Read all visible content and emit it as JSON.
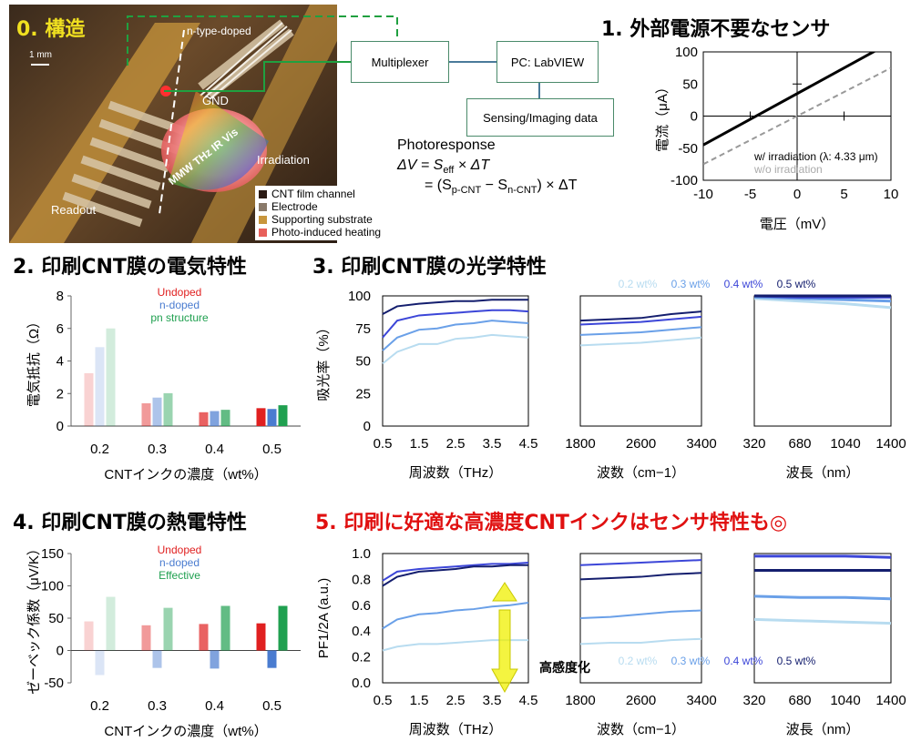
{
  "section0": {
    "title": "0. 構造",
    "scale": "1 mm",
    "labels": {
      "n": "n-type-doped",
      "gnd": "GND",
      "irr": "Irradiation",
      "readout": "Readout",
      "bands": "MMW THz IR Vis"
    },
    "legend": [
      {
        "color": "#2b1a14",
        "label": "CNT film channel"
      },
      {
        "color": "#8a7a6a",
        "label": "Electrode"
      },
      {
        "color": "#c8963c",
        "label": "Supporting substrate"
      },
      {
        "color": "#e8605a",
        "label": "Photo-induced heating"
      }
    ],
    "boxes": {
      "mux": "Multiplexer",
      "pc": "PC: LabVIEW",
      "sense": "Sensing/Imaging data"
    },
    "eq_title": "Photoresponse",
    "eq1": {
      "a": "ΔV = S",
      "sub": "eff",
      "b": " × ΔT"
    },
    "eq2": {
      "a": "= (S",
      "sub1": "p-CNT",
      "b": " − S",
      "sub2": "n-CNT",
      "c": ") × ΔT"
    }
  },
  "section1": {
    "title": "1. 外部電源不要なセンサ"
  },
  "section2": {
    "title": "2. 印刷CNT膜の電気特性"
  },
  "section3": {
    "title": "3. 印刷CNT膜の光学特性"
  },
  "section4": {
    "title": "4. 印刷CNT膜の熱電特性"
  },
  "section5": {
    "title": "5. 印刷に好適な高濃度CNTインクはセンサ特性も◎",
    "color": "#e01010",
    "arrow_label": "高感度化"
  },
  "colors": {
    "c02": "#b8dcf0",
    "c03": "#6aa0e8",
    "c04": "#3c46d8",
    "c05": "#141e6e",
    "undoped": "#e02020",
    "ndoped": "#4a7cd0",
    "pn": "#20a050"
  },
  "chart_data": [
    {
      "id": "iv",
      "type": "line",
      "xlabel": "電圧（mV）",
      "ylabel": "電流（μA）",
      "xlim": [
        -10,
        10
      ],
      "ylim": [
        -100,
        100
      ],
      "xticks": [
        "-10",
        "-5",
        "0",
        "5",
        "10"
      ],
      "yticks": [
        "-100",
        "-50",
        "0",
        "50",
        "100"
      ],
      "series": [
        {
          "name": "w/ irradiation (λ: 4.33 μm)",
          "x": [
            -10,
            10
          ],
          "y": [
            -45,
            115
          ],
          "color": "#000000"
        },
        {
          "name": "w/o irradiation",
          "x": [
            -10,
            10
          ],
          "y": [
            -75,
            75
          ],
          "color": "#999999"
        }
      ]
    },
    {
      "id": "resist",
      "type": "bar",
      "categories": [
        "0.2",
        "0.3",
        "0.4",
        "0.5"
      ],
      "xlabel": "CNTインクの濃度（wt%）",
      "ylabel": "電気抵抗（Ω）",
      "ylim": [
        0,
        8
      ],
      "yticks": [
        "0",
        "2",
        "4",
        "6",
        "8"
      ],
      "series": [
        {
          "name": "Undoped",
          "values": [
            3.25,
            1.4,
            0.85,
            1.1
          ]
        },
        {
          "name": "n-doped",
          "values": [
            4.85,
            1.75,
            0.92,
            1.05
          ]
        },
        {
          "name": "pn structure",
          "values": [
            6.0,
            2.02,
            1.0,
            1.28
          ]
        }
      ]
    },
    {
      "id": "seebeck",
      "type": "bar",
      "categories": [
        "0.2",
        "0.3",
        "0.4",
        "0.5"
      ],
      "xlabel": "CNTインクの濃度（wt%）",
      "ylabel": "ゼーベック係数（μV/K）",
      "ylim": [
        -50,
        150
      ],
      "yticks": [
        "-50",
        "0",
        "50",
        "100",
        "150"
      ],
      "series": [
        {
          "name": "Undoped",
          "values": [
            45,
            39,
            41,
            42
          ]
        },
        {
          "name": "n-doped",
          "values": [
            -38,
            -27,
            -28,
            -27
          ]
        },
        {
          "name": "Effective",
          "values": [
            83,
            66,
            69,
            69
          ]
        }
      ]
    },
    {
      "id": "absorb",
      "type": "line",
      "ylabel": "吸光率（%）",
      "ylim": [
        0,
        100
      ],
      "yticks": [
        "0",
        "25",
        "50",
        "75",
        "100"
      ],
      "series_names": [
        "0.2 wt%",
        "0.3 wt%",
        "0.4 wt%",
        "0.5 wt%"
      ],
      "panels": [
        {
          "xlabel": "周波数（THz）",
          "xlim": [
            0.5,
            4.5
          ],
          "xticks": [
            "0.5",
            "1.5",
            "2.5",
            "3.5",
            "4.5"
          ],
          "x": [
            0.5,
            0.9,
            1.5,
            2.0,
            2.5,
            3.0,
            3.5,
            4.0,
            4.5
          ],
          "y": [
            [
              48,
              57,
              63,
              63,
              67,
              68,
              70,
              69,
              68
            ],
            [
              58,
              68,
              74,
              75,
              78,
              79,
              81,
              80,
              79
            ],
            [
              68,
              81,
              85,
              86,
              87,
              88,
              89,
              89,
              88
            ],
            [
              86,
              92,
              94,
              95,
              96,
              96,
              97,
              97,
              97
            ]
          ]
        },
        {
          "xlabel": "波数（cm−1）",
          "xlim": [
            1800,
            3400
          ],
          "xticks": [
            "1800",
            "2600",
            "3400"
          ],
          "x": [
            1800,
            2200,
            2600,
            3000,
            3400
          ],
          "y": [
            [
              62,
              63,
              64,
              66,
              68
            ],
            [
              70,
              71,
              72,
              74,
              76
            ],
            [
              78,
              79,
              80,
              82,
              84
            ],
            [
              81,
              82,
              83,
              86,
              88
            ]
          ]
        },
        {
          "xlabel": "波長（nm）",
          "xlim": [
            320,
            1400
          ],
          "xticks": [
            "320",
            "680",
            "1040",
            "1400"
          ],
          "x": [
            320,
            680,
            1040,
            1400
          ],
          "y": [
            [
              98,
              96,
              94,
              91
            ],
            [
              99,
              98,
              97,
              96
            ],
            [
              100,
              99,
              99,
              99
            ],
            [
              100,
              100,
              100,
              100
            ]
          ]
        }
      ]
    },
    {
      "id": "pf",
      "type": "line",
      "ylabel": "PF1/2A (a.u.)",
      "ylim": [
        0,
        1
      ],
      "yticks": [
        "0.0",
        "0.2",
        "0.4",
        "0.6",
        "0.8",
        "1.0"
      ],
      "series_names": [
        "0.2 wt%",
        "0.3 wt%",
        "0.4 wt%",
        "0.5 wt%"
      ],
      "panels": [
        {
          "xlabel": "周波数（THz）",
          "xlim": [
            0.5,
            4.5
          ],
          "xticks": [
            "0.5",
            "1.5",
            "2.5",
            "3.5",
            "4.5"
          ],
          "x": [
            0.5,
            0.9,
            1.5,
            2.0,
            2.5,
            3.0,
            3.5,
            4.0,
            4.5
          ],
          "y": [
            [
              0.25,
              0.28,
              0.3,
              0.3,
              0.31,
              0.32,
              0.33,
              0.33,
              0.33
            ],
            [
              0.42,
              0.49,
              0.53,
              0.54,
              0.56,
              0.57,
              0.59,
              0.6,
              0.62
            ],
            [
              0.79,
              0.86,
              0.88,
              0.89,
              0.9,
              0.91,
              0.92,
              0.92,
              0.93
            ],
            [
              0.75,
              0.82,
              0.86,
              0.87,
              0.88,
              0.9,
              0.9,
              0.91,
              0.91
            ]
          ]
        },
        {
          "xlabel": "波数（cm−1）",
          "xlim": [
            1800,
            3400
          ],
          "xticks": [
            "1800",
            "2600",
            "3400"
          ],
          "x": [
            1800,
            2200,
            2600,
            3000,
            3400
          ],
          "y": [
            [
              0.3,
              0.31,
              0.31,
              0.33,
              0.34
            ],
            [
              0.5,
              0.51,
              0.53,
              0.55,
              0.56
            ],
            [
              0.91,
              0.92,
              0.93,
              0.94,
              0.95
            ],
            [
              0.8,
              0.81,
              0.82,
              0.84,
              0.85
            ]
          ]
        },
        {
          "xlabel": "波長（nm）",
          "xlim": [
            320,
            1400
          ],
          "xticks": [
            "320",
            "680",
            "1040",
            "1400"
          ],
          "x": [
            320,
            680,
            1040,
            1400
          ],
          "y": [
            [
              0.49,
              0.48,
              0.47,
              0.46
            ],
            [
              0.67,
              0.66,
              0.66,
              0.65
            ],
            [
              0.98,
              0.98,
              0.98,
              0.97
            ],
            [
              0.87,
              0.87,
              0.87,
              0.87
            ]
          ]
        }
      ]
    }
  ]
}
